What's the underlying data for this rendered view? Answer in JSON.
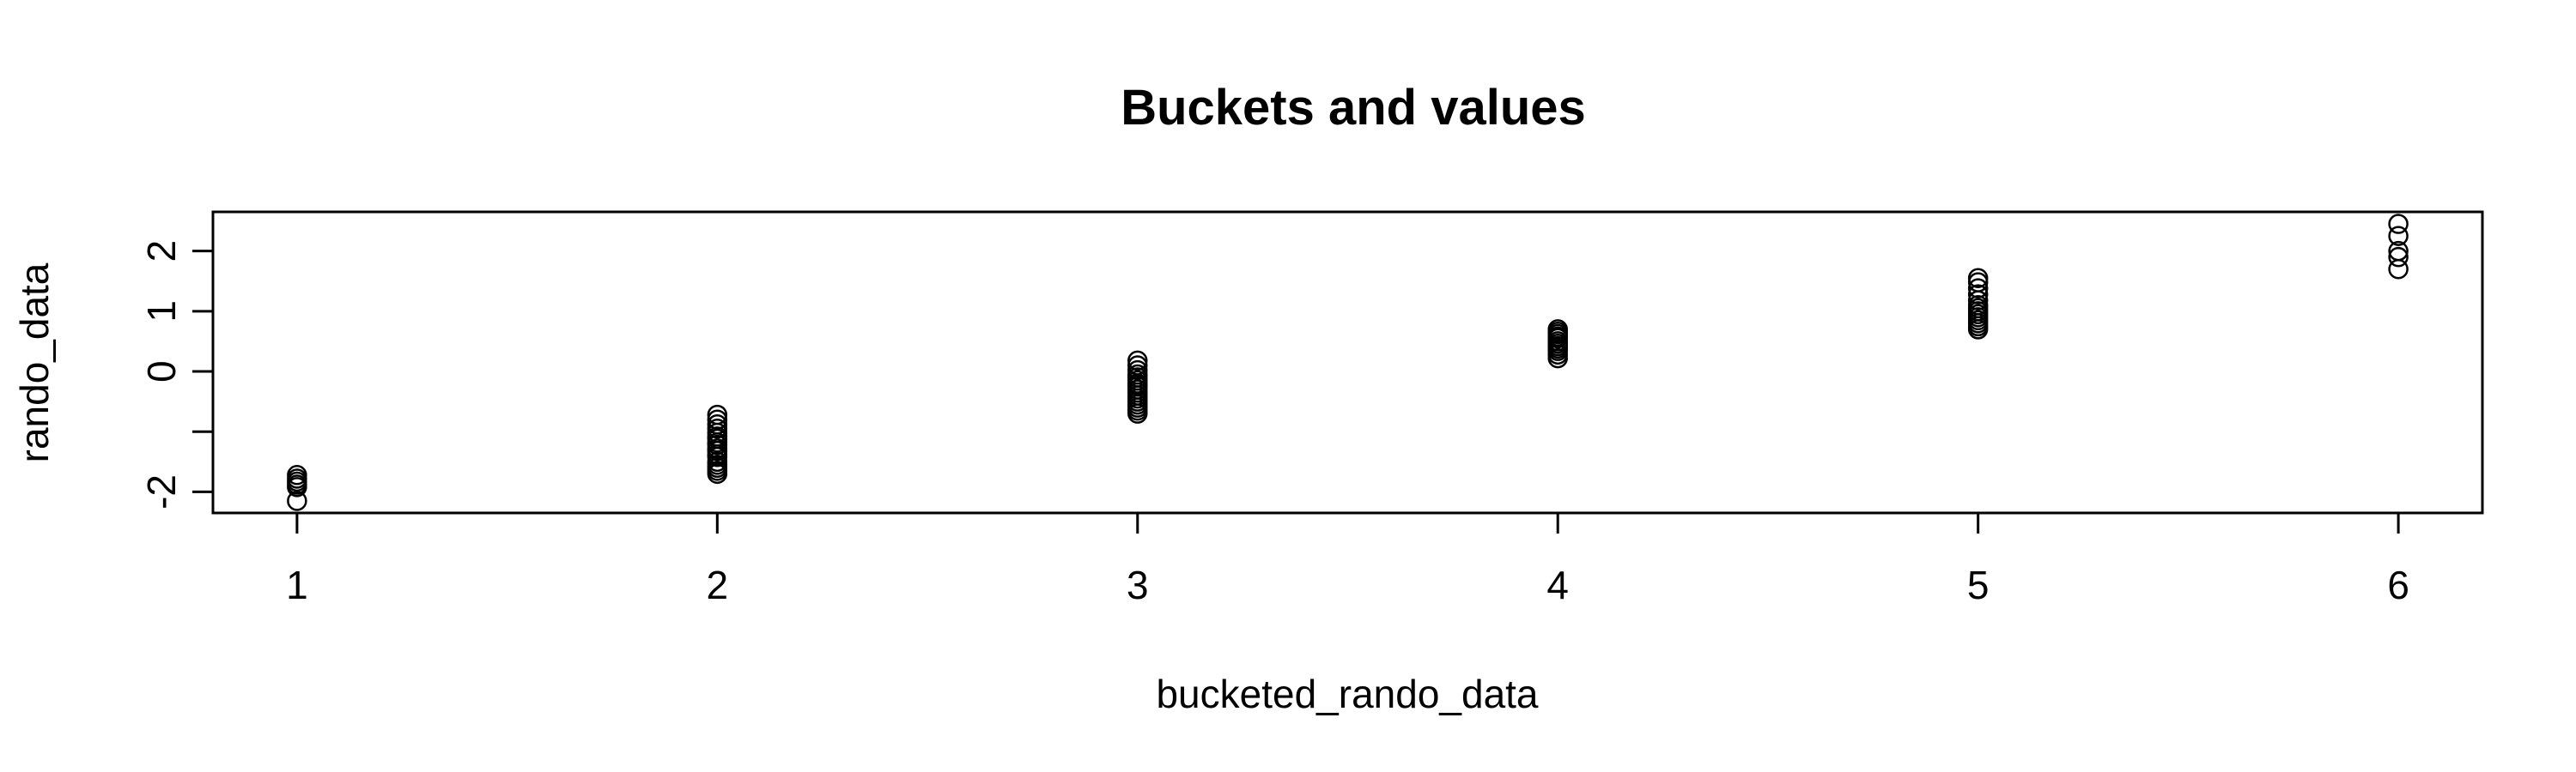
{
  "chart_data": {
    "type": "scatter",
    "title": "Buckets and values",
    "xlabel": "bucketed_rando_data",
    "ylabel": "rando_data",
    "xlim": [
      0.8,
      6.2
    ],
    "ylim": [
      -2.35,
      2.65
    ],
    "x_ticks": [
      1,
      2,
      3,
      4,
      5,
      6
    ],
    "x_tick_labels": [
      "1",
      "2",
      "3",
      "4",
      "5",
      "6"
    ],
    "y_ticks": [
      -2,
      -1,
      0,
      1,
      2
    ],
    "y_tick_labels": [
      "-2",
      "",
      "0",
      "1",
      "2"
    ],
    "grid": false,
    "point_color": "#000000",
    "series": [
      {
        "x": [
          1,
          1,
          1,
          1,
          1,
          1
        ],
        "y": [
          -1.72,
          -1.78,
          -1.83,
          -1.88,
          -1.92,
          -2.15
        ]
      },
      {
        "x": [
          2,
          2,
          2,
          2,
          2,
          2,
          2,
          2,
          2,
          2,
          2,
          2,
          2,
          2,
          2,
          2,
          2,
          2
        ],
        "y": [
          -0.72,
          -0.8,
          -0.88,
          -0.95,
          -1.02,
          -1.08,
          -1.12,
          -1.18,
          -1.22,
          -1.28,
          -1.32,
          -1.38,
          -1.42,
          -1.5,
          -1.55,
          -1.6,
          -1.65,
          -1.7
        ]
      },
      {
        "x": [
          3,
          3,
          3,
          3,
          3,
          3,
          3,
          3,
          3,
          3,
          3,
          3,
          3,
          3,
          3,
          3,
          3,
          3
        ],
        "y": [
          0.18,
          0.1,
          0.02,
          -0.05,
          -0.1,
          -0.15,
          -0.2,
          -0.25,
          -0.3,
          -0.35,
          -0.4,
          -0.45,
          -0.5,
          -0.55,
          -0.6,
          -0.65,
          -0.7,
          -0.22
        ]
      },
      {
        "x": [
          4,
          4,
          4,
          4,
          4,
          4,
          4,
          4,
          4,
          4,
          4,
          4
        ],
        "y": [
          0.7,
          0.66,
          0.62,
          0.58,
          0.55,
          0.5,
          0.46,
          0.42,
          0.38,
          0.34,
          0.28,
          0.22
        ]
      },
      {
        "x": [
          5,
          5,
          5,
          5,
          5,
          5,
          5,
          5,
          5,
          5,
          5,
          5,
          5,
          5
        ],
        "y": [
          1.55,
          1.48,
          1.38,
          1.28,
          1.18,
          1.1,
          1.05,
          1.0,
          0.95,
          0.9,
          0.85,
          0.8,
          0.75,
          0.7
        ]
      },
      {
        "x": [
          6,
          6,
          6,
          6,
          6
        ],
        "y": [
          2.45,
          2.25,
          2.0,
          1.9,
          1.7
        ]
      }
    ]
  }
}
